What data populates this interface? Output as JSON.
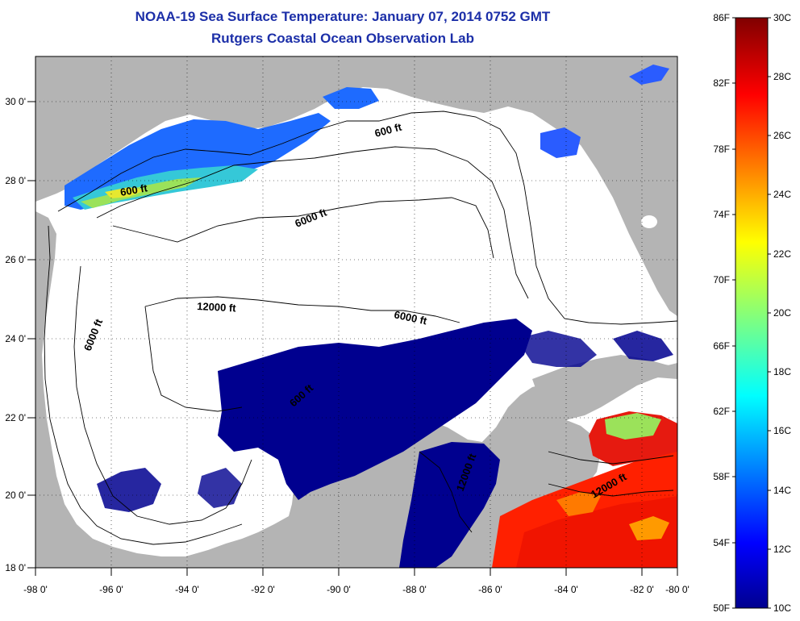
{
  "title": "NOAA-19 Sea Surface Temperature:  January 07, 2014 0752 GMT",
  "subtitle": "Rutgers Coastal Ocean Observation Lab",
  "map": {
    "lon_range": [
      -98,
      -80
    ],
    "lat_range": [
      18,
      31
    ],
    "lon_ticks": [
      "-98 0'",
      "-96 0'",
      "-94 0'",
      "-92 0'",
      "-90 0'",
      "-88 0'",
      "-86 0'",
      "-84 0'",
      "-82 0'",
      "-80 0'"
    ],
    "lat_ticks": [
      "30 0'",
      "28 0'",
      "26 0'",
      "24 0'",
      "22 0'",
      "20 0'",
      "18 0'"
    ],
    "land_color": "#b4b4b4",
    "ocean_color": "#ffffff",
    "contour_labels": [
      "600 ft",
      "600 ft",
      "6000 ft",
      "6000 ft",
      "12000 ft",
      "6000 ft",
      "600 ft",
      "12000 ft",
      "12000 ft"
    ]
  },
  "colorbar": {
    "range_c": [
      10,
      30
    ],
    "range_f": [
      50,
      86
    ],
    "labels_f": [
      "86F",
      "82F",
      "78F",
      "74F",
      "70F",
      "66F",
      "62F",
      "58F",
      "54F",
      "50F"
    ],
    "labels_c": [
      "30C",
      "28C",
      "26C",
      "24C",
      "22C",
      "20C",
      "18C",
      "16C",
      "14C",
      "12C",
      "10C"
    ]
  }
}
